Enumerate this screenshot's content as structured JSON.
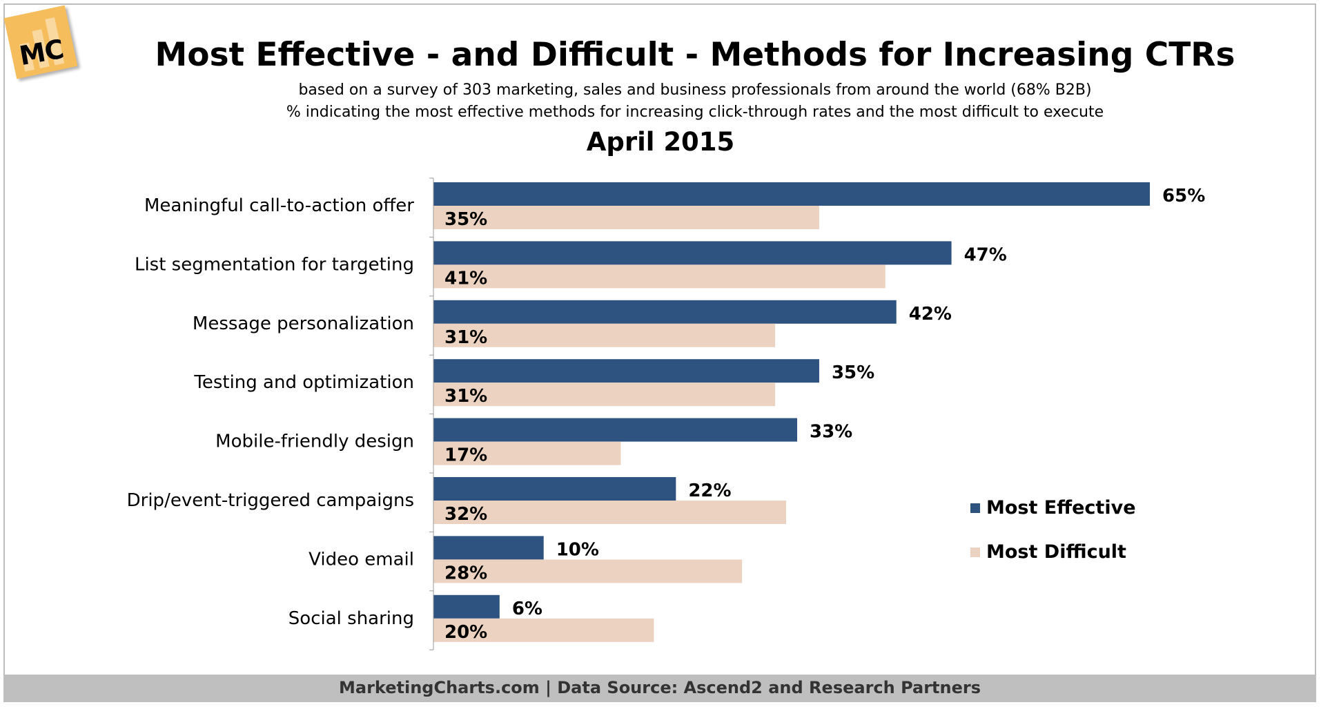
{
  "header": {
    "logo_text": "MC",
    "title": "Most Effective - and Difficult - Methods for Increasing CTRs",
    "subtitle1": "based on a survey of 303 marketing, sales and business professionals from around the world (68% B2B)",
    "subtitle2": "% indicating the most effective methods for increasing click-through rates and the most difficult to execute",
    "period": "April 2015"
  },
  "colors": {
    "most_effective": "#2f5381",
    "most_difficult": "#ecd3c1"
  },
  "chart_data": {
    "type": "bar",
    "orientation": "horizontal",
    "title": "Most Effective - and Difficult - Methods for Increasing CTRs",
    "categories": [
      "Meaningful call-to-action offer",
      "List segmentation for targeting",
      "Message personalization",
      "Testing and optimization",
      "Mobile-friendly design",
      "Drip/event-triggered campaigns",
      "Video email",
      "Social sharing"
    ],
    "series": [
      {
        "name": "Most Effective",
        "values": [
          65,
          47,
          42,
          35,
          33,
          22,
          10,
          6
        ]
      },
      {
        "name": "Most Difficult",
        "values": [
          35,
          41,
          31,
          31,
          17,
          32,
          28,
          20
        ]
      }
    ],
    "value_suffix": "%",
    "xlim": [
      0,
      65
    ],
    "grid": false,
    "legend": "right"
  },
  "footer": "MarketingCharts.com | Data Source: Ascend2 and Research Partners"
}
